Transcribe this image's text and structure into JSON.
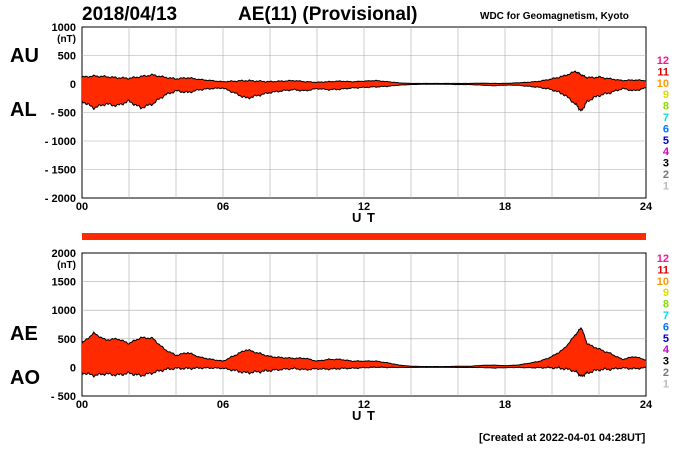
{
  "header": {
    "date": "2018/04/13",
    "title": "AE(11) (Provisional)",
    "source": "WDC for Geomagnetism, Kyoto"
  },
  "footer": {
    "created": "[Created at 2022-04-01 04:28UT]"
  },
  "hour_legend": [
    "12",
    "11",
    "10",
    "9",
    "8",
    "7",
    "6",
    "5",
    "4",
    "3",
    "2",
    "1"
  ],
  "hour_colors": [
    "#ff1493",
    "#dd0000",
    "#ff9900",
    "#dddd00",
    "#88dd00",
    "#00dddd",
    "#0077ff",
    "#0000cc",
    "#cc00cc",
    "#000000",
    "#777777",
    "#bbbbbb"
  ],
  "colors": {
    "fill": "#ff2a00",
    "outline": "#000000",
    "grid": "#aaaaaa",
    "strip": "#ff2a00"
  },
  "chart_data": [
    {
      "type": "area",
      "panel": "AU/AL",
      "series_labels": [
        "AU",
        "AL"
      ],
      "unit": "(nT)",
      "xlabel": "U T",
      "xlim": [
        0,
        24
      ],
      "x_ticks": [
        "00",
        "06",
        "12",
        "18",
        "24"
      ],
      "ylim": [
        -2000,
        1000
      ],
      "y_ticks": [
        "1000",
        "500",
        "0",
        "- 500",
        "- 1000",
        "- 1500",
        "- 2000"
      ],
      "grid": true,
      "hours": [
        0,
        0.5,
        1,
        1.5,
        2,
        2.5,
        3,
        3.5,
        4,
        4.5,
        5,
        5.5,
        6,
        6.5,
        7,
        7.5,
        8,
        8.5,
        9,
        9.5,
        10,
        10.5,
        11,
        11.5,
        12,
        12.5,
        13,
        13.5,
        14,
        14.5,
        15,
        15.5,
        16,
        16.5,
        17,
        17.5,
        18,
        18.5,
        19,
        19.5,
        20,
        20.5,
        21,
        21.25,
        21.5,
        22,
        22.5,
        23,
        23.5,
        24
      ],
      "AU": [
        120,
        140,
        130,
        110,
        100,
        130,
        160,
        120,
        90,
        110,
        80,
        60,
        40,
        50,
        60,
        50,
        40,
        50,
        60,
        40,
        30,
        40,
        50,
        40,
        50,
        60,
        40,
        20,
        10,
        10,
        10,
        10,
        10,
        10,
        15,
        10,
        10,
        20,
        30,
        50,
        90,
        140,
        220,
        160,
        110,
        120,
        90,
        60,
        70,
        60
      ],
      "AL": [
        -300,
        -420,
        -350,
        -380,
        -300,
        -420,
        -350,
        -200,
        -120,
        -150,
        -100,
        -80,
        -70,
        -160,
        -250,
        -200,
        -150,
        -120,
        -100,
        -120,
        -80,
        -100,
        -90,
        -70,
        -60,
        -50,
        -40,
        -20,
        -10,
        -5,
        -5,
        -5,
        -10,
        -10,
        -20,
        -30,
        -20,
        -20,
        -40,
        -60,
        -100,
        -180,
        -350,
        -480,
        -300,
        -200,
        -150,
        -80,
        -120,
        -70
      ]
    },
    {
      "type": "area",
      "panel": "AE/AO",
      "series_labels": [
        "AE",
        "AO"
      ],
      "unit": "(nT)",
      "xlabel": "U T",
      "xlim": [
        0,
        24
      ],
      "x_ticks": [
        "00",
        "06",
        "12",
        "18",
        "24"
      ],
      "ylim": [
        -500,
        2000
      ],
      "y_ticks": [
        "2000",
        "1500",
        "1000",
        "500",
        "0",
        "- 500"
      ],
      "grid": true,
      "hours": [
        0,
        0.5,
        1,
        1.5,
        2,
        2.5,
        3,
        3.5,
        4,
        4.5,
        5,
        5.5,
        6,
        6.5,
        7,
        7.5,
        8,
        8.5,
        9,
        9.5,
        10,
        10.5,
        11,
        11.5,
        12,
        12.5,
        13,
        13.5,
        14,
        14.5,
        15,
        15.5,
        16,
        16.5,
        17,
        17.5,
        18,
        18.5,
        19,
        19.5,
        20,
        20.5,
        21,
        21.25,
        21.5,
        22,
        22.5,
        23,
        23.5,
        24
      ],
      "AE": [
        420,
        600,
        480,
        500,
        420,
        520,
        510,
        320,
        210,
        260,
        180,
        140,
        110,
        210,
        310,
        250,
        190,
        170,
        160,
        160,
        110,
        140,
        140,
        110,
        110,
        110,
        80,
        40,
        20,
        15,
        15,
        15,
        20,
        20,
        35,
        40,
        30,
        40,
        70,
        110,
        190,
        320,
        570,
        700,
        410,
        320,
        240,
        140,
        190,
        130
      ],
      "AO": [
        -90,
        -140,
        -110,
        -135,
        -100,
        -145,
        -95,
        -40,
        -15,
        -20,
        -10,
        -10,
        -15,
        -55,
        -95,
        -75,
        -55,
        -35,
        -20,
        -40,
        -25,
        -30,
        -20,
        -15,
        -5,
        5,
        0,
        0,
        0,
        2,
        2,
        2,
        0,
        0,
        -2,
        -10,
        -5,
        0,
        -5,
        -5,
        -5,
        -20,
        -65,
        -160,
        -95,
        -40,
        -30,
        -10,
        -25,
        -5
      ]
    }
  ]
}
